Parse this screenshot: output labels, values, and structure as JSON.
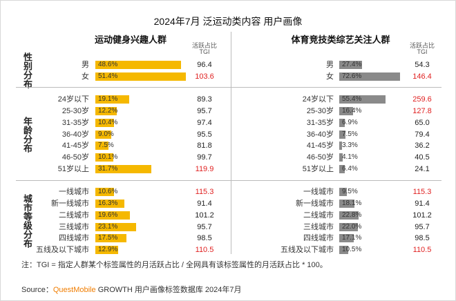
{
  "title": "2024年7月 泛运动类内容 用户画像",
  "group_labels": [
    "性别分布",
    "年龄分布",
    "城市等级分布"
  ],
  "tgi_header": [
    "活跃占比",
    "TGI"
  ],
  "chart_data": [
    {
      "type": "bar",
      "title": "运动健身兴趣人群",
      "color": "#f5b800",
      "groups": [
        {
          "categories": [
            "男",
            "女"
          ],
          "values": [
            48.6,
            51.4
          ],
          "value_labels": [
            "48.6%",
            "51.4%"
          ],
          "tgi": [
            "96.4",
            "103.6"
          ],
          "tgi_colors": [
            "#222222",
            "#e02020"
          ]
        },
        {
          "categories": [
            "24岁以下",
            "25-30岁",
            "31-35岁",
            "36-40岁",
            "41-45岁",
            "46-50岁",
            "51岁以上"
          ],
          "values": [
            19.1,
            12.2,
            10.4,
            9.0,
            7.5,
            10.1,
            31.7
          ],
          "value_labels": [
            "19.1%",
            "12.2%",
            "10.4%",
            "9.0%",
            "7.5%",
            "10.1%",
            "31.7%"
          ],
          "tgi": [
            "89.3",
            "95.7",
            "97.4",
            "95.5",
            "81.8",
            "99.7",
            "119.9"
          ],
          "tgi_colors": [
            "#222222",
            "#222222",
            "#222222",
            "#222222",
            "#222222",
            "#222222",
            "#e02020"
          ]
        },
        {
          "categories": [
            "一线城市",
            "新一线城市",
            "二线城市",
            "三线城市",
            "四线城市",
            "五线及以下城市"
          ],
          "values": [
            10.6,
            16.3,
            19.6,
            23.1,
            17.5,
            12.9
          ],
          "value_labels": [
            "10.6%",
            "16.3%",
            "19.6%",
            "23.1%",
            "17.5%",
            "12.9%"
          ],
          "tgi": [
            "115.3",
            "91.4",
            "101.2",
            "95.7",
            "98.5",
            "110.5"
          ],
          "tgi_colors": [
            "#e02020",
            "#222222",
            "#222222",
            "#222222",
            "#222222",
            "#e02020"
          ]
        }
      ]
    },
    {
      "type": "bar",
      "title": "体育竞技类综艺关注人群",
      "color": "#8a8a8a",
      "groups": [
        {
          "categories": [
            "男",
            "女"
          ],
          "values": [
            27.4,
            72.6
          ],
          "value_labels": [
            "27.4%",
            "72.6%"
          ],
          "tgi": [
            "54.3",
            "146.4"
          ],
          "tgi_colors": [
            "#222222",
            "#e02020"
          ]
        },
        {
          "categories": [
            "24岁以下",
            "25-30岁",
            "31-35岁",
            "36-40岁",
            "41-45岁",
            "46-50岁",
            "51岁以上"
          ],
          "values": [
            55.4,
            16.4,
            6.9,
            7.5,
            3.3,
            4.1,
            6.4
          ],
          "value_labels": [
            "55.4%",
            "16.4%",
            "6.9%",
            "7.5%",
            "3.3%",
            "4.1%",
            "6.4%"
          ],
          "tgi": [
            "259.6",
            "127.8",
            "65.0",
            "79.4",
            "36.2",
            "40.5",
            "24.1"
          ],
          "tgi_colors": [
            "#e02020",
            "#e02020",
            "#222222",
            "#222222",
            "#222222",
            "#222222",
            "#222222"
          ]
        },
        {
          "categories": [
            "一线城市",
            "新一线城市",
            "二线城市",
            "三线城市",
            "四线城市",
            "五线及以下城市"
          ],
          "values": [
            9.5,
            18.1,
            22.8,
            22.0,
            17.1,
            10.5
          ],
          "value_labels": [
            "9.5%",
            "18.1%",
            "22.8%",
            "22.0%",
            "17.1%",
            "10.5%"
          ],
          "tgi": [
            "115.3",
            "91.4",
            "101.2",
            "95.7",
            "98.5",
            "110.5"
          ],
          "tgi_colors": [
            "#e02020",
            "#222222",
            "#222222",
            "#222222",
            "#222222",
            "#e02020"
          ]
        }
      ]
    }
  ],
  "note": "注：TGI = 指定人群某个标签属性的月活跃占比 / 全网具有该标签属性的月活跃占比 * 100。",
  "source": {
    "label": "Source：",
    "brand": "QuestMobile",
    "text": "GROWTH 用户画像标签数据库 2024年7月"
  }
}
